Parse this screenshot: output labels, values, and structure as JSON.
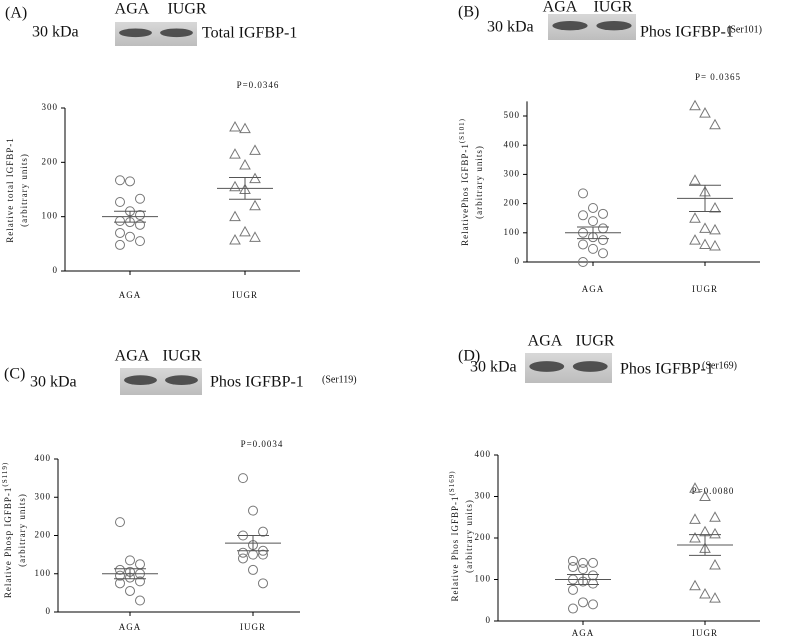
{
  "chart_data": [
    {
      "type": "dot",
      "panel": "(A)",
      "marker_weight": "30 kDa",
      "blot_title": "Total IGFBP-1",
      "y_label": "Relative total IGFBP-1",
      "y_label_units": "(arbitrary units)",
      "annotation": "P=0.0346",
      "categories": [
        "AGA",
        "IUGR"
      ],
      "markers": [
        "circle",
        "triangle"
      ],
      "color": "#777777",
      "values": [
        [
          167,
          165,
          133,
          127,
          110,
          103,
          92,
          90,
          85,
          70,
          63,
          55,
          48
        ],
        [
          265,
          262,
          222,
          215,
          195,
          170,
          155,
          150,
          120,
          100,
          72,
          62,
          57
        ]
      ],
      "means": [
        100,
        152
      ],
      "errors": [
        10,
        20
      ],
      "ylim": [
        0,
        300
      ],
      "yticks": [
        0,
        100,
        200,
        300
      ]
    },
    {
      "type": "dot",
      "panel": "(B)",
      "marker_weight": "30 kDa",
      "blot_title": "Phos IGFBP-1",
      "blot_title_superscript": "(Ser101)",
      "y_label": "RelativePhos IGFBP-1",
      "y_label_superscript": "(S101)",
      "y_label_units": "(arbitrary units)",
      "annotation": "P= 0.0365",
      "categories": [
        "AGA",
        "IUGR"
      ],
      "markers": [
        "circle",
        "triangle"
      ],
      "color": "#777777",
      "values": [
        [
          235,
          185,
          165,
          160,
          140,
          115,
          100,
          85,
          75,
          60,
          45,
          30,
          0
        ],
        [
          535,
          510,
          470,
          280,
          240,
          185,
          150,
          115,
          110,
          75,
          60,
          55
        ]
      ],
      "means": [
        100,
        218
      ],
      "errors": [
        20,
        45
      ],
      "ylim": [
        0,
        550
      ],
      "yticks": [
        0,
        100,
        200,
        300,
        400,
        500
      ]
    },
    {
      "type": "dot",
      "panel": "(C)",
      "marker_weight": "30 kDa",
      "blot_title": "Phos IGFBP-1",
      "blot_title_superscript": "(Ser119)",
      "y_label": "Relative Phosp IGFBP-1",
      "y_label_superscript": "(S119)",
      "y_label_units": "(arbitrary units)",
      "annotation": "P=0.0034",
      "categories": [
        "AGA",
        "IUGR"
      ],
      "markers": [
        "circle",
        "circle"
      ],
      "color": "#777777",
      "values": [
        [
          235,
          135,
          125,
          110,
          105,
          100,
          95,
          90,
          80,
          75,
          55,
          30
        ],
        [
          350,
          265,
          210,
          200,
          175,
          160,
          155,
          150,
          150,
          140,
          110,
          75
        ]
      ],
      "means": [
        100,
        180
      ],
      "errors": [
        13,
        20
      ],
      "ylim": [
        0,
        400
      ],
      "yticks": [
        0,
        100,
        200,
        300,
        400
      ]
    },
    {
      "type": "dot",
      "panel": "(D)",
      "marker_weight": "30 kDa",
      "blot_title": "Phos IGFBP-1",
      "blot_title_superscript": "(Ser169)",
      "y_label": "Relative Phos IGFBP-1",
      "y_label_superscript": "(S169)",
      "y_label_units": "(arbitrary units)",
      "annotation": "P=0.0080",
      "categories": [
        "AGA",
        "IUGR"
      ],
      "markers": [
        "circle",
        "triangle"
      ],
      "color": "#777777",
      "values": [
        [
          145,
          140,
          140,
          130,
          125,
          110,
          100,
          95,
          90,
          75,
          45,
          40,
          30
        ],
        [
          320,
          300,
          250,
          245,
          215,
          210,
          200,
          175,
          135,
          85,
          65,
          55
        ]
      ],
      "means": [
        100,
        183
      ],
      "errors": [
        12,
        25
      ],
      "ylim": [
        0,
        400
      ],
      "yticks": [
        0,
        100,
        200,
        300,
        400
      ]
    }
  ]
}
